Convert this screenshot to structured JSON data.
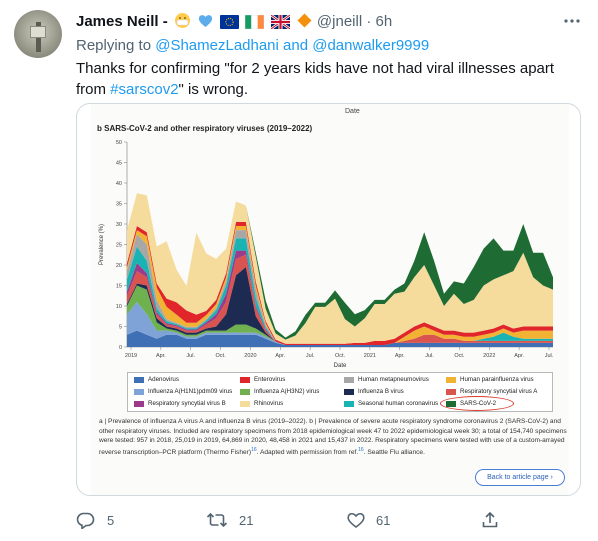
{
  "tweet": {
    "author_name": "James Neill -",
    "author_handle": "@jneill",
    "separator": "·",
    "time": "6h",
    "name_emojis": [
      "mask-face-emoji",
      "blue-heart-emoji",
      "eu-flag-icon",
      "ireland-flag-icon",
      "uk-flag-icon",
      "orange-diamond-icon"
    ],
    "reply_prefix": "Replying to",
    "reply_to": [
      "@ShamezLadhani",
      "@danwalker9999"
    ],
    "reply_and": "and",
    "text_before_link": "Thanks for confirming \"for 2 years kids have not had viral illnesses apart from",
    "hashtag": "#sarscov2",
    "text_after_link": "\" is wrong.",
    "more_icon": "more-icon"
  },
  "figure": {
    "top_label": "Date",
    "panel_title_letter": "b",
    "panel_title": "SARS-CoV-2 and other respiratory viruses (2019–2022)",
    "ylabel": "Prevalence (%)",
    "xlabel": "Date",
    "x_ticks": [
      "2019",
      "Apr.",
      "Jul.",
      "Oct.",
      "2020",
      "Apr.",
      "Jul.",
      "Oct.",
      "2021",
      "Apr.",
      "Jul.",
      "Oct.",
      "2022",
      "Apr.",
      "Jul."
    ],
    "y_ticks": [
      "0",
      "5",
      "10",
      "15",
      "20",
      "25",
      "30",
      "35",
      "40",
      "45",
      "50"
    ],
    "legend": [
      {
        "label": "Adenovirus",
        "color": "#3f6fb5"
      },
      {
        "label": "Enterovirus",
        "color": "#e0262b"
      },
      {
        "label": "Human metapneumovirus",
        "color": "#a7a7a7"
      },
      {
        "label": "Human parainfluenza virus",
        "color": "#f2b233"
      },
      {
        "label": "Influenza A(H1N1)pdm09 virus",
        "color": "#7fa3d6"
      },
      {
        "label": "Influenza A(H3N2) virus",
        "color": "#6fb04f"
      },
      {
        "label": "Influenza B virus",
        "color": "#1d2a52"
      },
      {
        "label": "Respiratory syncytial virus A",
        "color": "#d9534f"
      },
      {
        "label": "Respiratory syncytial virus B",
        "color": "#9c3a8c"
      },
      {
        "label": "Rhinovirus",
        "color": "#f6dc9c"
      },
      {
        "label": "Seasonal human coronavirus",
        "color": "#19b3b3"
      },
      {
        "label": "SARS-CoV-2",
        "color": "#1e6b34"
      }
    ],
    "caption": "a | Prevalence of influenza A virus A and influenza B virus (2019–2022). b | Prevalence of severe acute respiratory syndrome coronavirus 2 (SARS-CoV-2) and other respiratory viruses. Included are respiratory specimens from 2018 epidemiological week 47 to 2022 epidemiological week 30; a total of 154,740 specimens were tested: 957 in 2018, 25,019 in 2019, 64,869 in 2020, 48,458 in 2021 and 15,437 in 2022. Respiratory specimens were tested with use of a custom-arrayed reverse transcription–PCR platform (Thermo Fisher)",
    "caption_ref1": "16",
    "caption_mid": ". Adapted with permission from ref.",
    "caption_ref2": "16",
    "caption_end": ". Seattle Flu alliance.",
    "button_label": "Back to article page ›"
  },
  "chart_data": {
    "type": "area",
    "title": "SARS-CoV-2 and other respiratory viruses (2019–2022)",
    "xlabel": "Date",
    "ylabel": "Prevalence (%)",
    "ylim": [
      0,
      50
    ],
    "x_range": [
      "2019-01",
      "2022-08"
    ],
    "x": [
      0,
      1,
      2,
      3,
      4,
      5,
      6,
      7,
      8,
      9,
      10,
      11,
      12,
      13,
      14,
      15,
      16,
      17,
      18,
      19,
      20,
      21,
      22,
      23,
      24,
      25,
      26,
      27,
      28,
      29,
      30,
      31,
      32,
      33,
      34,
      35,
      36,
      37,
      38,
      39,
      40,
      41,
      42,
      43
    ],
    "x_unit": "months since Jan 2019",
    "series": [
      {
        "name": "Adenovirus",
        "values": [
          3,
          4,
          3,
          2,
          3,
          3,
          2,
          2,
          3,
          3,
          3,
          3,
          3,
          3,
          2,
          1,
          0.5,
          0.5,
          0.5,
          0.5,
          0.5,
          0.5,
          0.5,
          0.5,
          0.5,
          0.5,
          0.5,
          1,
          1,
          1,
          1,
          1,
          1,
          1,
          1,
          1,
          1,
          1,
          1,
          1,
          1,
          1,
          1,
          1
        ]
      },
      {
        "name": "Influenza A(H1N1)pdm09 virus",
        "values": [
          5,
          7,
          5,
          2,
          1,
          0.5,
          0.5,
          0.5,
          0.5,
          0.5,
          0.5,
          0.5,
          0.5,
          0.5,
          0.5,
          0.3,
          0,
          0,
          0,
          0,
          0,
          0,
          0,
          0,
          0,
          0,
          0,
          0,
          0,
          0,
          0,
          0,
          0,
          0,
          0,
          0,
          0,
          0,
          0,
          0,
          0,
          0,
          0,
          0
        ]
      },
      {
        "name": "Influenza A(H3N2) virus",
        "values": [
          2,
          4,
          6,
          2,
          0.5,
          0.5,
          0.5,
          0.5,
          0.5,
          0.5,
          0.5,
          2,
          2,
          1,
          0.5,
          0,
          0,
          0,
          0,
          0,
          0,
          0,
          0,
          0,
          0,
          0,
          0,
          0,
          0,
          0,
          0,
          0,
          0,
          0,
          0,
          0,
          0,
          0,
          0,
          0,
          0,
          0,
          0,
          0
        ]
      },
      {
        "name": "Influenza B virus",
        "values": [
          0.5,
          0.5,
          1,
          1,
          0.5,
          0.5,
          0.5,
          0.5,
          0.5,
          1,
          4,
          12,
          14,
          3,
          0.5,
          0,
          0,
          0,
          0,
          0,
          0,
          0,
          0,
          0,
          0,
          0,
          0,
          0,
          0,
          0,
          0,
          0,
          0,
          0,
          0,
          0,
          0,
          0,
          0,
          0,
          0,
          0,
          0,
          0
        ]
      },
      {
        "name": "Respiratory syncytial virus A",
        "values": [
          2,
          3,
          2,
          1,
          0.5,
          0.5,
          0.5,
          0.5,
          1,
          2,
          3,
          4,
          3,
          2,
          0.5,
          0,
          0,
          0,
          0,
          0,
          0,
          0,
          0,
          0,
          0,
          0,
          0,
          0,
          0.5,
          1,
          2,
          2,
          1,
          1,
          0.5,
          0.5,
          0.5,
          0.5,
          0.5,
          0.5,
          0.5,
          0.5,
          0.5,
          0.5
        ]
      },
      {
        "name": "Respiratory syncytial virus B",
        "values": [
          1,
          2,
          1,
          0.5,
          0.3,
          0.3,
          0.3,
          0.3,
          0.5,
          1,
          2,
          2,
          1,
          0.5,
          0.3,
          0,
          0,
          0,
          0,
          0,
          0,
          0,
          0,
          0,
          0,
          0,
          0,
          0,
          0,
          0,
          0,
          0,
          0,
          0,
          0,
          0,
          0,
          0,
          0,
          0,
          0,
          0,
          0,
          0
        ]
      },
      {
        "name": "Seasonal human coronavirus",
        "values": [
          3,
          4,
          3,
          1,
          0.5,
          0.3,
          0.3,
          0.3,
          0.5,
          1,
          2,
          3,
          3,
          2,
          0.5,
          0,
          0,
          0,
          0,
          0,
          0,
          0,
          0,
          0,
          0,
          0,
          0,
          0,
          0,
          0,
          0,
          0,
          0,
          0,
          0,
          0,
          0.5,
          1,
          2,
          1,
          0.5,
          0.5,
          0.5,
          0.5
        ]
      },
      {
        "name": "Human metapneumovirus",
        "values": [
          2,
          3,
          4,
          2,
          0.5,
          0.3,
          0.3,
          0.3,
          0.3,
          0.5,
          1,
          2,
          2,
          2,
          0.5,
          0,
          0,
          0,
          0,
          0,
          0,
          0,
          0,
          0,
          0,
          0,
          0,
          0,
          0,
          0,
          0,
          0,
          0,
          0,
          0,
          0,
          0,
          0,
          0,
          0,
          0,
          0,
          0,
          0
        ]
      },
      {
        "name": "Human parainfluenza virus",
        "values": [
          1,
          1,
          2,
          3,
          3,
          2,
          1,
          1,
          1,
          1,
          1,
          1,
          1,
          1,
          0.5,
          0,
          0,
          0,
          0,
          0,
          0,
          0,
          0,
          0,
          0,
          0,
          0,
          0,
          1,
          2,
          2,
          1,
          1,
          1,
          1,
          1,
          1,
          1,
          1,
          1,
          2,
          2,
          2,
          2
        ]
      },
      {
        "name": "Enterovirus",
        "values": [
          1,
          1,
          1,
          1,
          2,
          3,
          3,
          2,
          1,
          1,
          1,
          1,
          1,
          1,
          0.5,
          0.5,
          0.3,
          0.3,
          0.3,
          0.3,
          0.3,
          0.3,
          0.3,
          0.5,
          0.5,
          1,
          1,
          1,
          1,
          1,
          1,
          1,
          1,
          1,
          1,
          1,
          1,
          1,
          1,
          1,
          1,
          1,
          1,
          1
        ]
      },
      {
        "name": "Rhinovirus",
        "values": [
          8,
          8,
          9,
          9,
          14,
          8,
          6,
          20,
          14,
          10,
          6,
          5,
          4,
          6,
          3,
          1.5,
          1,
          2,
          5,
          9,
          9,
          11,
          6,
          4,
          6,
          9,
          9,
          11,
          10,
          12,
          14,
          10,
          6,
          9,
          7,
          8,
          11,
          12,
          12,
          14,
          18,
          12,
          10,
          9
        ]
      },
      {
        "name": "SARS-CoV-2",
        "values": [
          0,
          0,
          0,
          0,
          0,
          0,
          0,
          0,
          0,
          0,
          0,
          0,
          0,
          1,
          2,
          1,
          0.5,
          1,
          2,
          1,
          1,
          2,
          4,
          3,
          2,
          1,
          1,
          1,
          2,
          4,
          8,
          6,
          3,
          3,
          5,
          8,
          9,
          10,
          6,
          5,
          7,
          6,
          8,
          3
        ]
      }
    ]
  },
  "actions": [
    {
      "name": "reply-button",
      "icon": "reply-icon",
      "count": "5"
    },
    {
      "name": "retweet-button",
      "icon": "retweet-icon",
      "count": "21"
    },
    {
      "name": "like-button",
      "icon": "heart-icon",
      "count": "61"
    },
    {
      "name": "share-button",
      "icon": "share-icon",
      "count": ""
    }
  ]
}
